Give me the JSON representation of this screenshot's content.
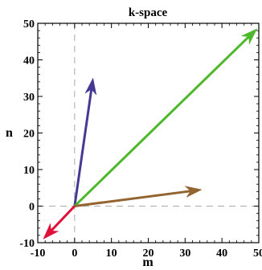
{
  "chart_data": {
    "type": "vector",
    "title": "k-space",
    "xlabel": "m",
    "ylabel": "n",
    "xlim": [
      -10,
      50
    ],
    "ylim": [
      -10,
      50
    ],
    "xticks": [
      -10,
      0,
      10,
      20,
      30,
      40,
      50
    ],
    "yticks": [
      -10,
      0,
      10,
      20,
      30,
      40,
      50
    ],
    "x_tick_labels": [
      "-10",
      "0",
      "10",
      "20",
      "30",
      "40",
      "50"
    ],
    "y_tick_labels": [
      "-10",
      "0",
      "10",
      "20",
      "30",
      "40",
      "50"
    ],
    "zero_lines": true,
    "grid": false,
    "vectors": [
      {
        "origin": [
          0,
          0
        ],
        "end": [
          5,
          35
        ],
        "color": "#443a93"
      },
      {
        "origin": [
          0,
          0
        ],
        "end": [
          49.5,
          48.5
        ],
        "color": "#4db82b"
      },
      {
        "origin": [
          0,
          0
        ],
        "end": [
          34.5,
          4.5
        ],
        "color": "#946430"
      },
      {
        "origin": [
          0,
          0
        ],
        "end": [
          -8.5,
          -9
        ],
        "color": "#e0103a"
      }
    ]
  }
}
